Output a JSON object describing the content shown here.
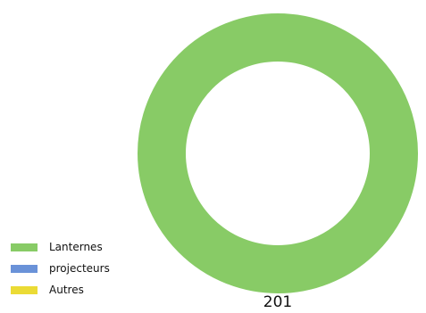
{
  "chart_data": {
    "type": "pie",
    "categories": [
      "Lanternes",
      "projecteurs",
      "Autres"
    ],
    "values": [
      201,
      0,
      0
    ],
    "colors": [
      "#88CB66",
      "#6A92D8",
      "#EBDB35"
    ],
    "legend": "bottom-left",
    "total_label": "201"
  }
}
